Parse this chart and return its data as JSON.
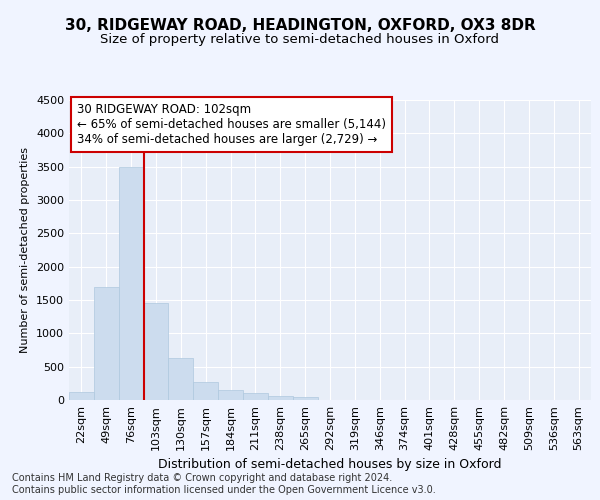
{
  "title1": "30, RIDGEWAY ROAD, HEADINGTON, OXFORD, OX3 8DR",
  "title2": "Size of property relative to semi-detached houses in Oxford",
  "xlabel": "Distribution of semi-detached houses by size in Oxford",
  "ylabel": "Number of semi-detached properties",
  "categories": [
    "22sqm",
    "49sqm",
    "76sqm",
    "103sqm",
    "130sqm",
    "157sqm",
    "184sqm",
    "211sqm",
    "238sqm",
    "265sqm",
    "292sqm",
    "319sqm",
    "346sqm",
    "374sqm",
    "401sqm",
    "428sqm",
    "455sqm",
    "482sqm",
    "509sqm",
    "536sqm",
    "563sqm"
  ],
  "values": [
    120,
    1700,
    3500,
    1450,
    625,
    270,
    155,
    100,
    60,
    45,
    0,
    0,
    0,
    0,
    0,
    0,
    0,
    0,
    0,
    0,
    0
  ],
  "bar_color": "#ccdcee",
  "bar_edgecolor": "#aec8de",
  "vline_x_index": 3,
  "vline_color": "#cc0000",
  "annotation_text": "30 RIDGEWAY ROAD: 102sqm\n← 65% of semi-detached houses are smaller (5,144)\n34% of semi-detached houses are larger (2,729) →",
  "annotation_box_color": "#cc0000",
  "ylim": [
    0,
    4500
  ],
  "yticks": [
    0,
    500,
    1000,
    1500,
    2000,
    2500,
    3000,
    3500,
    4000,
    4500
  ],
  "background_color": "#f0f4ff",
  "plot_bg_color": "#e8eef8",
  "grid_color": "#ffffff",
  "footnote": "Contains HM Land Registry data © Crown copyright and database right 2024.\nContains public sector information licensed under the Open Government Licence v3.0.",
  "title1_fontsize": 11,
  "title2_fontsize": 9.5,
  "xlabel_fontsize": 9,
  "ylabel_fontsize": 8,
  "tick_fontsize": 8,
  "annotation_fontsize": 8.5,
  "footnote_fontsize": 7
}
